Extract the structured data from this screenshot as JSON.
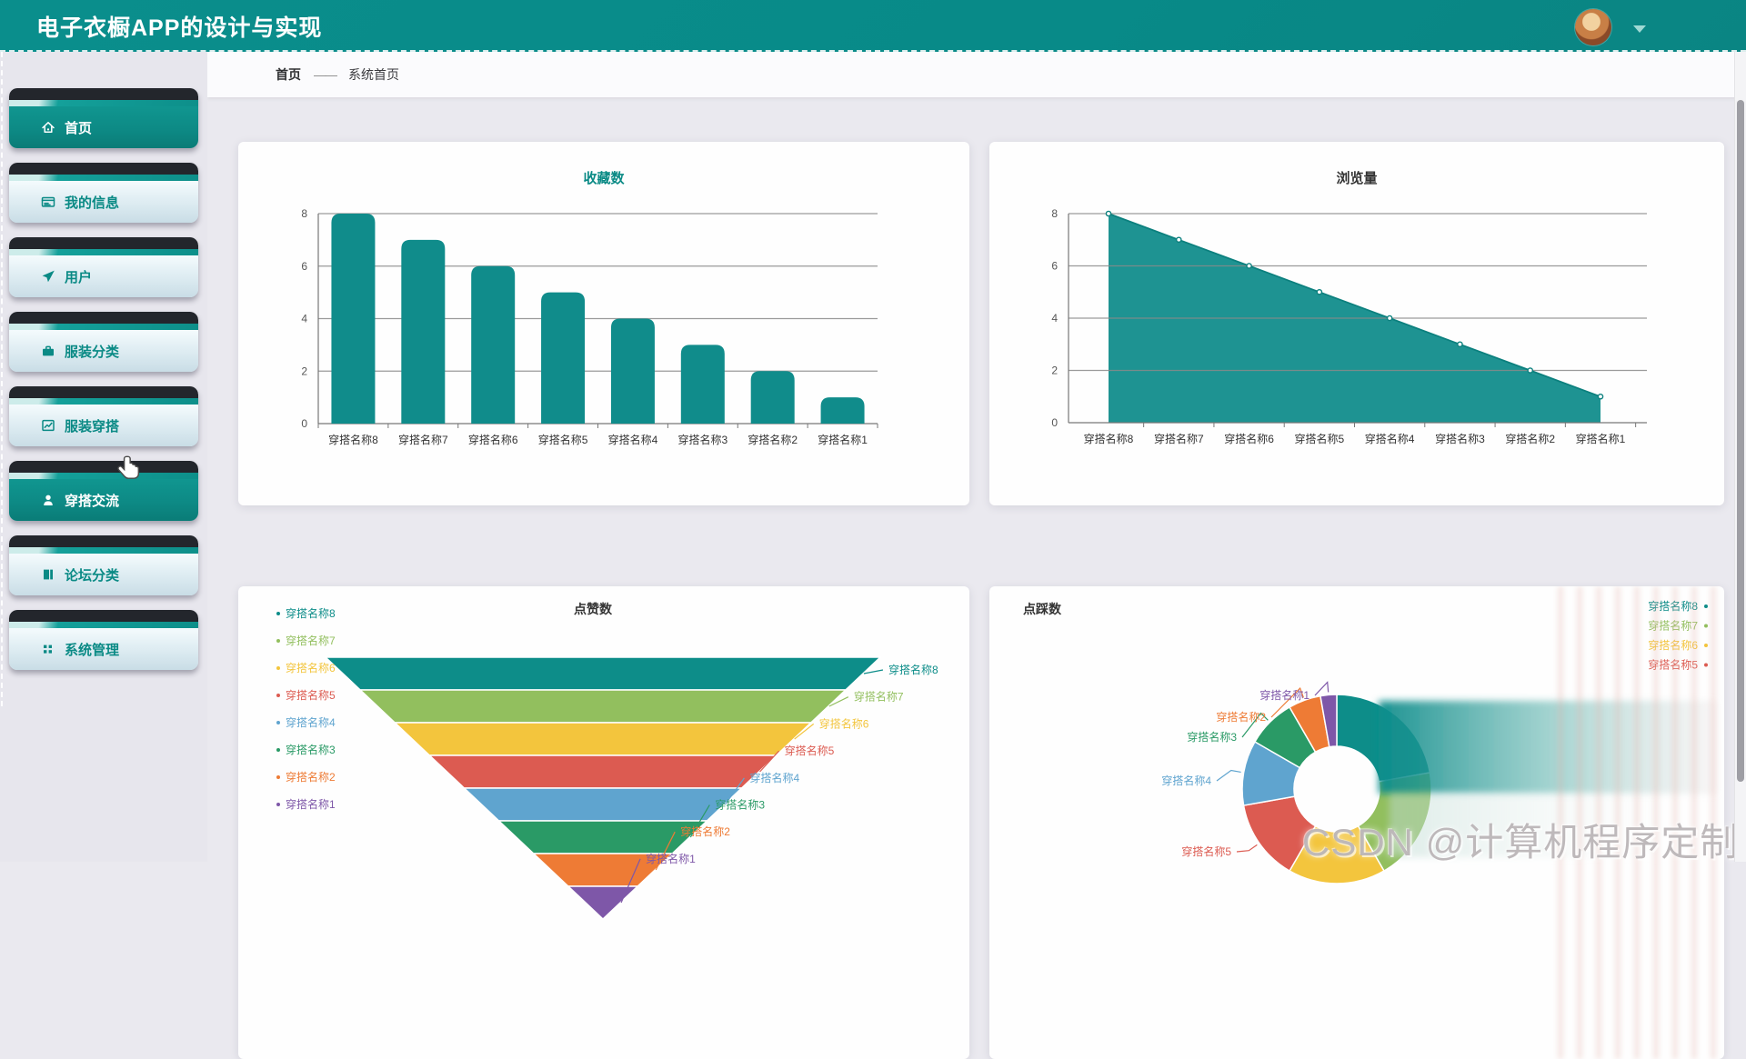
{
  "header": {
    "title": "电子衣橱APP的设计与实现"
  },
  "user_menu": {
    "avatar": "user-avatar",
    "caret": "dropdown"
  },
  "sidebar": {
    "items": [
      {
        "label": "首页",
        "icon": "home",
        "active": true,
        "hovered": false
      },
      {
        "label": "我的信息",
        "icon": "id-card",
        "active": false,
        "hovered": false
      },
      {
        "label": "用户",
        "icon": "paper-plane",
        "active": false,
        "hovered": false
      },
      {
        "label": "服装分类",
        "icon": "briefcase",
        "active": false,
        "hovered": false
      },
      {
        "label": "服装穿搭",
        "icon": "chart-line",
        "active": false,
        "hovered": false
      },
      {
        "label": "穿搭交流",
        "icon": "person",
        "active": false,
        "hovered": true
      },
      {
        "label": "论坛分类",
        "icon": "book",
        "active": false,
        "hovered": false
      },
      {
        "label": "系统管理",
        "icon": "grid",
        "active": false,
        "hovered": false
      }
    ]
  },
  "breadcrumb": {
    "root": "首页",
    "separator": "——",
    "current": "系统首页"
  },
  "watermark": "CSDN @计算机程序定制辅导",
  "palette": {
    "header_teal": "#088a88",
    "chart_teal": "#108c8b",
    "series": [
      "#0d8d89",
      "#92bf5e",
      "#f3c53d",
      "#dc5b51",
      "#5fa4cf",
      "#2a9a66",
      "#ee7b35",
      "#7e57a8"
    ]
  },
  "chart_data": [
    {
      "type": "bar",
      "title": "收藏数",
      "title_color": "#0a8a85",
      "categories": [
        "穿搭名称8",
        "穿搭名称7",
        "穿搭名称6",
        "穿搭名称5",
        "穿搭名称4",
        "穿搭名称3",
        "穿搭名称2",
        "穿搭名称1"
      ],
      "values": [
        8,
        7,
        6,
        5,
        4,
        3,
        2,
        1
      ],
      "xlabel": "",
      "ylabel": "",
      "ylim": [
        0,
        8
      ],
      "yticks": [
        0,
        2,
        4,
        6,
        8
      ],
      "grid": true,
      "legend_position": "none",
      "bar_color": "#108c8b"
    },
    {
      "type": "area",
      "title": "浏览量",
      "title_color": "#333333",
      "categories": [
        "穿搭名称8",
        "穿搭名称7",
        "穿搭名称6",
        "穿搭名称5",
        "穿搭名称4",
        "穿搭名称3",
        "穿搭名称2",
        "穿搭名称1"
      ],
      "values": [
        8,
        7,
        6,
        5,
        4,
        3,
        2,
        1
      ],
      "xlabel": "",
      "ylabel": "",
      "ylim": [
        0,
        8
      ],
      "yticks": [
        0,
        2,
        4,
        6,
        8
      ],
      "grid": true,
      "legend_position": "none",
      "line_color": "#0c807e",
      "fill_color": "#128d8c",
      "markers": true
    },
    {
      "type": "funnel",
      "title": "点赞数",
      "title_color": "#333333",
      "categories": [
        "穿搭名称8",
        "穿搭名称7",
        "穿搭名称6",
        "穿搭名称5",
        "穿搭名称4",
        "穿搭名称3",
        "穿搭名称2",
        "穿搭名称1"
      ],
      "values": [
        8,
        7,
        6,
        5,
        4,
        3,
        2,
        1
      ],
      "colors": [
        "#0d8d89",
        "#92bf5e",
        "#f3c53d",
        "#dc5b51",
        "#5fa4cf",
        "#2a9a66",
        "#ee7b35",
        "#7e57a8"
      ],
      "legend_position": "left",
      "sort": "descending"
    },
    {
      "type": "pie",
      "subtype": "donut",
      "title": "点踩数",
      "title_color": "#333333",
      "categories": [
        "穿搭名称8",
        "穿搭名称7",
        "穿搭名称6",
        "穿搭名称5",
        "穿搭名称4",
        "穿搭名称3",
        "穿搭名称2",
        "穿搭名称1"
      ],
      "values": [
        8,
        7,
        6,
        5,
        4,
        3,
        2,
        1
      ],
      "colors": [
        "#0d8d89",
        "#92bf5e",
        "#f3c53d",
        "#dc5b51",
        "#5fa4cf",
        "#2a9a66",
        "#ee7b35",
        "#7e57a8"
      ],
      "legend_position": "right",
      "legend_visible": [
        "穿搭名称8",
        "穿搭名称7",
        "穿搭名称6",
        "穿搭名称5"
      ],
      "callouts": [
        "穿搭名称1",
        "穿搭名称2",
        "穿搭名称3",
        "穿搭名称4",
        "穿搭名称5"
      ]
    }
  ]
}
